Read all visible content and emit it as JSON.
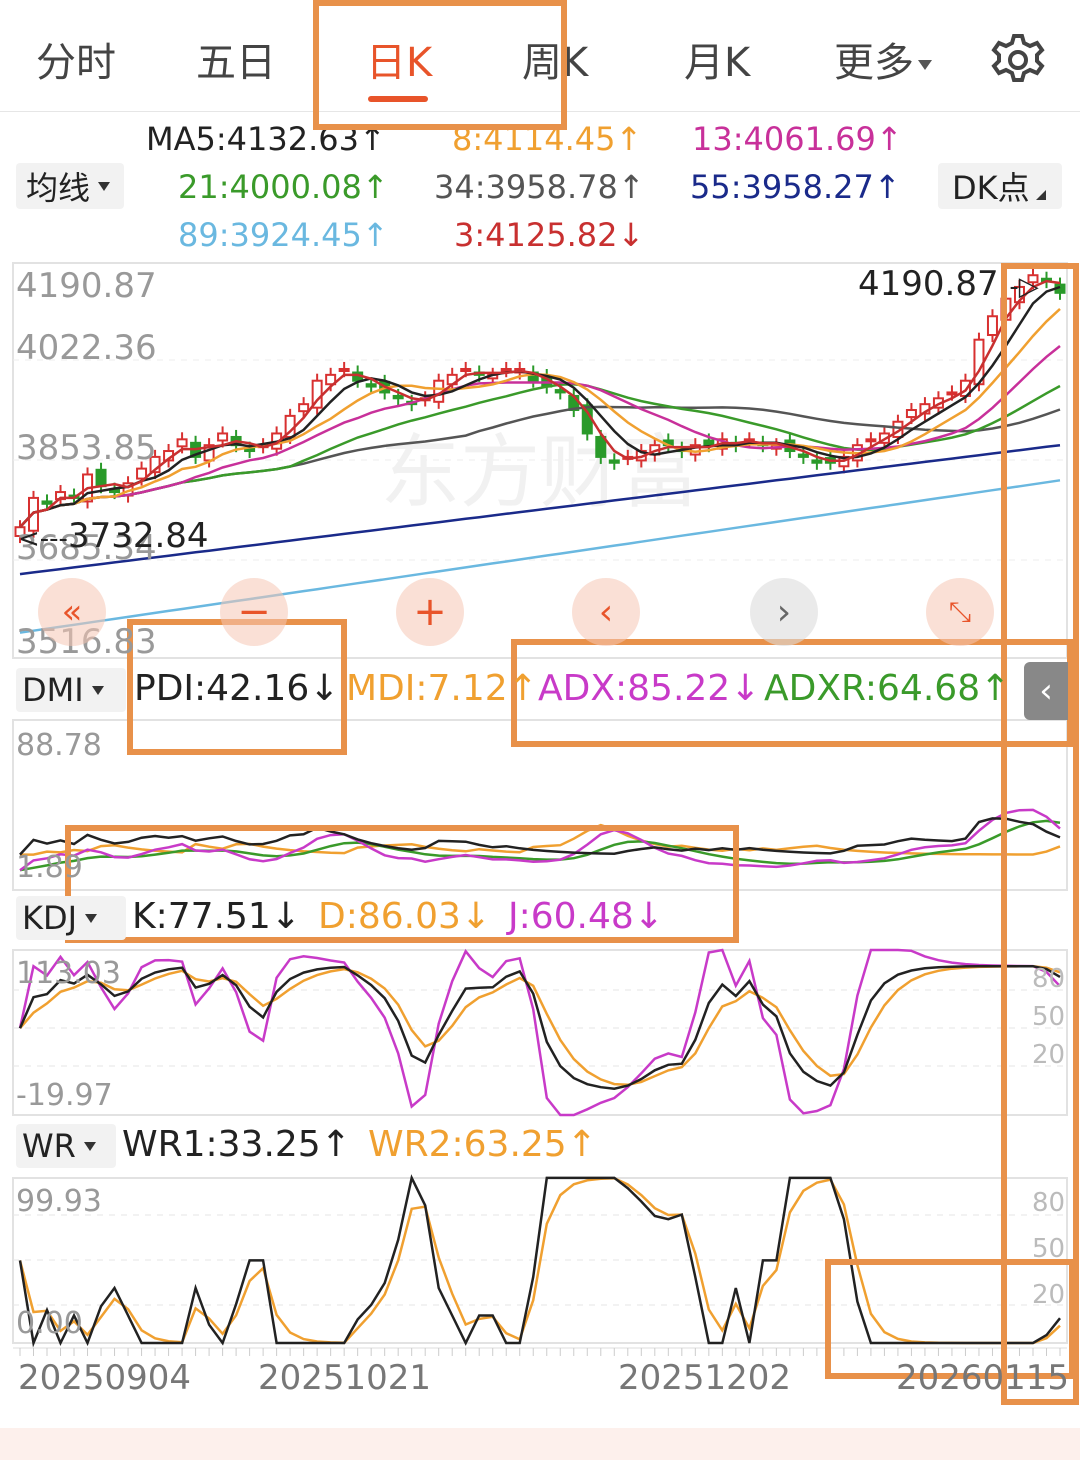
{
  "tabs": [
    {
      "label": "分时"
    },
    {
      "label": "五日"
    },
    {
      "label": "日K"
    },
    {
      "label": "周K"
    },
    {
      "label": "月K"
    }
  ],
  "more_label": "更多",
  "ma_dropdown": "均线",
  "dk_button": "DK点",
  "ma_legend": {
    "ma5": "MA5:4132.63↑",
    "ma8": "8:4114.45↑",
    "ma13": "13:4061.69↑",
    "ma21": "21:4000.08↑",
    "ma34": "34:3958.78↑",
    "ma55": "55:3958.27↑",
    "ma89": "89:3924.45↑",
    "ma3": "3:4125.82↓"
  },
  "price_axis": {
    "top": "4190.87",
    "l2": "4022.36",
    "l3": "3853.85",
    "l4": "3685.34",
    "l5": "3516.83",
    "high_marker": "4190.87",
    "low_marker": "3732.84"
  },
  "dmi": {
    "dropdown": "DMI",
    "pdi": "PDI:42.16↓",
    "mdi": "MDI:7.12↑",
    "adx": "ADX:85.22↓",
    "adxr": "ADXR:64.68↑",
    "axis_top": "88.78",
    "axis_bottom": "1.89"
  },
  "kdj": {
    "dropdown": "KDJ",
    "k": "K:77.51↓",
    "d": "D:86.03↓",
    "j": "J:60.48↓",
    "axis_top": "113.03",
    "axis_bottom": "-19.97",
    "ref_80": "80",
    "ref_50": "50",
    "ref_20": "20"
  },
  "wr": {
    "dropdown": "WR",
    "wr1": "WR1:33.25↑",
    "wr2": "WR2:63.25↑",
    "axis_top": "99.93",
    "axis_bottom": "0.00",
    "ref_80": "80",
    "ref_50": "50",
    "ref_20": "20"
  },
  "dates": [
    "20250904",
    "20251021",
    "20251202",
    "20260115"
  ],
  "colors": {
    "accent": "#e8542a",
    "ma5": "#222222",
    "ma8": "#f0a030",
    "ma13": "#c8309a",
    "ma21": "#3a9a2a",
    "ma34": "#555555",
    "ma55": "#1a2a8a",
    "ma89": "#6ab8e0",
    "ma3": "#c83030",
    "up": "#d83030",
    "down": "#2a9a2a",
    "annotation": "#e8914a"
  },
  "chart_data": {
    "type": "candlestick",
    "price_range": [
      3516.83,
      4190.87
    ],
    "series_close": [
      3740,
      3790,
      3780,
      3800,
      3790,
      3830,
      3810,
      3800,
      3815,
      3840,
      3860,
      3870,
      3890,
      3860,
      3880,
      3900,
      3880,
      3870,
      3880,
      3900,
      3930,
      3950,
      3990,
      4000,
      4010,
      3990,
      3980,
      3970,
      3960,
      3950,
      3960,
      3990,
      4000,
      4010,
      4000,
      4000,
      4010,
      4010,
      3990,
      3980,
      3970,
      3940,
      3900,
      3860,
      3850,
      3860,
      3870,
      3880,
      3880,
      3870,
      3880,
      3880,
      3890,
      3880,
      3890,
      3880,
      3880,
      3870,
      3860,
      3850,
      3850,
      3860,
      3880,
      3890,
      3900,
      3920,
      3940,
      3950,
      3960,
      3970,
      3990,
      4060,
      4100,
      4130,
      4150,
      4170,
      4160,
      4140
    ],
    "kdj_range": [
      -19.97,
      113.03
    ],
    "dmi_range": [
      1.89,
      88.78
    ],
    "wr_range": [
      0.0,
      99.93
    ]
  }
}
